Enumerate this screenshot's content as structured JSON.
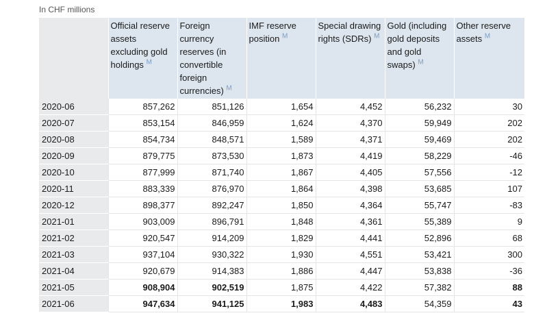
{
  "unit_note": "In CHF millions",
  "columns": [
    "Official reserve assets excluding gold holdings",
    "Foreign currency reserves (in convertible foreign currencies)",
    "IMF reserve position",
    "Special drawing rights (SDRs)",
    "Gold (including gold deposits and gold swaps)",
    "Other reserve assets"
  ],
  "footnote_mark": "M",
  "rows": [
    {
      "period": "2020-06",
      "values": [
        "857,262",
        "851,126",
        "1,654",
        "4,452",
        "56,232",
        "30"
      ]
    },
    {
      "period": "2020-07",
      "values": [
        "853,154",
        "846,959",
        "1,624",
        "4,370",
        "59,949",
        "202"
      ]
    },
    {
      "period": "2020-08",
      "values": [
        "854,734",
        "848,571",
        "1,589",
        "4,371",
        "59,469",
        "202"
      ]
    },
    {
      "period": "2020-09",
      "values": [
        "879,775",
        "873,530",
        "1,873",
        "4,419",
        "58,229",
        "-46"
      ]
    },
    {
      "period": "2020-10",
      "values": [
        "877,999",
        "871,740",
        "1,867",
        "4,405",
        "57,556",
        "-12"
      ]
    },
    {
      "period": "2020-11",
      "values": [
        "883,339",
        "876,970",
        "1,864",
        "4,398",
        "53,685",
        "107"
      ]
    },
    {
      "period": "2020-12",
      "values": [
        "898,377",
        "892,247",
        "1,850",
        "4,364",
        "55,747",
        "-83"
      ]
    },
    {
      "period": "2021-01",
      "values": [
        "903,009",
        "896,791",
        "1,848",
        "4,361",
        "55,389",
        "9"
      ]
    },
    {
      "period": "2021-02",
      "values": [
        "920,547",
        "914,209",
        "1,829",
        "4,441",
        "52,896",
        "68"
      ]
    },
    {
      "period": "2021-03",
      "values": [
        "937,104",
        "930,322",
        "1,930",
        "4,551",
        "53,421",
        "300"
      ]
    },
    {
      "period": "2021-04",
      "values": [
        "920,679",
        "914,383",
        "1,886",
        "4,447",
        "53,838",
        "-36"
      ]
    },
    {
      "period": "2021-05",
      "values": [
        "908,904",
        "902,519",
        "1,875",
        "4,422",
        "57,382",
        "88"
      ]
    },
    {
      "period": "2021-06",
      "values": [
        "947,634",
        "941,125",
        "1,983",
        "4,483",
        "54,359",
        "43"
      ]
    }
  ]
}
